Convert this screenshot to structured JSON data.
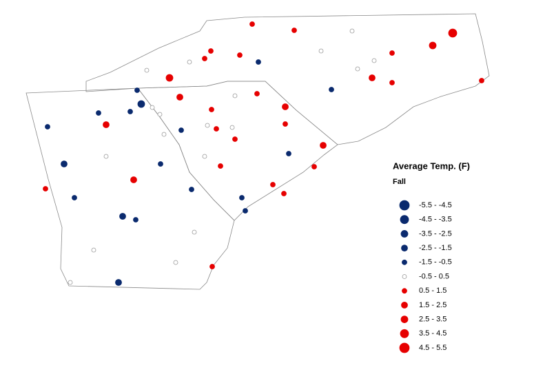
{
  "legend": {
    "title": "Average Temp. (F)",
    "subtitle": "Fall",
    "classes": [
      {
        "label": "-5.5 - -4.5",
        "min": -5.5,
        "max": -4.5,
        "color": "#0a2a6e"
      },
      {
        "label": "-4.5 - -3.5",
        "min": -4.5,
        "max": -3.5,
        "color": "#0a2a6e"
      },
      {
        "label": "-3.5 - -2.5",
        "min": -3.5,
        "max": -2.5,
        "color": "#0a2a6e"
      },
      {
        "label": "-2.5 - -1.5",
        "min": -2.5,
        "max": -1.5,
        "color": "#0a2a6e"
      },
      {
        "label": "-1.5 - -0.5",
        "min": -1.5,
        "max": -0.5,
        "color": "#0a2a6e"
      },
      {
        "label": "-0.5 -  0.5",
        "min": -0.5,
        "max": 0.5,
        "color": "#ffffff"
      },
      {
        "label": "0.5 -  1.5",
        "min": 0.5,
        "max": 1.5,
        "color": "#e60000"
      },
      {
        "label": "1.5 -  2.5",
        "min": 1.5,
        "max": 2.5,
        "color": "#e60000"
      },
      {
        "label": "2.5 -  3.5",
        "min": 2.5,
        "max": 3.5,
        "color": "#e60000"
      },
      {
        "label": "3.5 -  4.5",
        "min": 3.5,
        "max": 4.5,
        "color": "#e60000"
      },
      {
        "label": "4.5 -  5.5",
        "min": 4.5,
        "max": 5.5,
        "color": "#e60000"
      }
    ]
  },
  "stations": {
    "values": [
      1,
      1,
      0,
      4,
      3,
      1,
      0,
      0,
      0,
      1,
      1,
      1,
      -1,
      0,
      0,
      3,
      2,
      1,
      1,
      -1,
      1,
      -1,
      -3,
      -1,
      0,
      0,
      2,
      0,
      2,
      1,
      -1,
      2,
      -1,
      -1,
      0,
      0,
      1,
      0,
      1,
      1,
      2,
      -1,
      0,
      0,
      -2,
      -1,
      1,
      1,
      2,
      1,
      1,
      -1,
      1,
      -1,
      -1,
      -2,
      -1,
      -1,
      0,
      0,
      0,
      1,
      0,
      -2
    ]
  }
}
